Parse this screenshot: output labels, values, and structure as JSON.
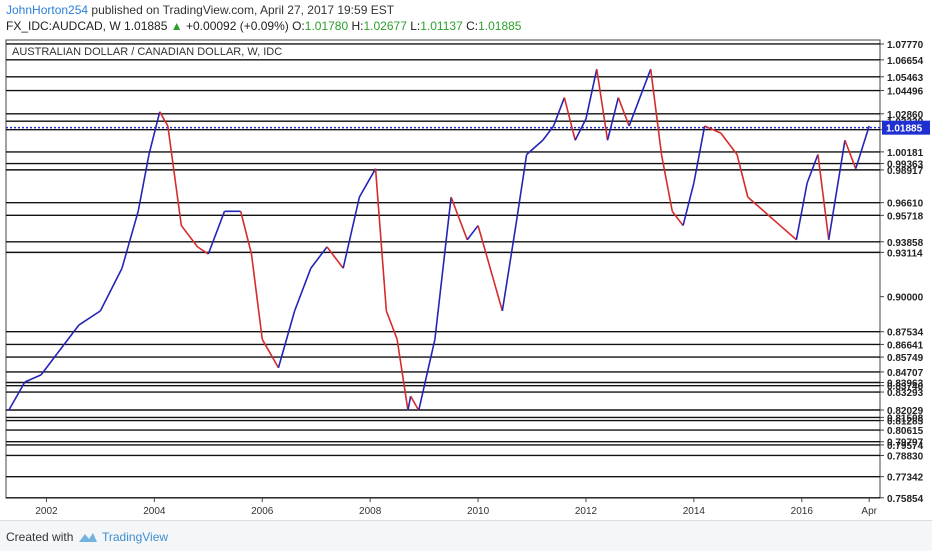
{
  "header": {
    "author": "JohnHorton254",
    "published_text": " published on TradingView.com, April 27, 2017 19:59 EST",
    "symbol": "FX_IDC:AUDCAD, W",
    "last_price": "1.01885",
    "change": "+0.00092 (+0.09%)",
    "ohlc": [
      {
        "label": "O:",
        "value": "1.01780"
      },
      {
        "label": "H:",
        "value": "1.02677"
      },
      {
        "label": "L:",
        "value": "1.01137"
      },
      {
        "label": "C:",
        "value": "1.01885"
      }
    ]
  },
  "footer": {
    "created_with": "Created with",
    "brand": "TradingView"
  },
  "colors": {
    "up": "#2424b8",
    "down": "#d62b2b",
    "level_line": "#111111",
    "current_line": "#2233cc",
    "current_label_bg": "#1f2fd0"
  },
  "chart_data": {
    "type": "line",
    "title": "AUSTRALIAN DOLLAR / CANADIAN DOLLAR, W, IDC",
    "ylim": [
      0.7584,
      1.0805
    ],
    "x_tick_labels": [
      "2002",
      "2004",
      "2006",
      "2008",
      "2010",
      "2012",
      "2014",
      "2016",
      "Apr"
    ],
    "x_tick_years": [
      2002,
      2004,
      2006,
      2008,
      2010,
      2012,
      2014,
      2016,
      2017.25
    ],
    "x_range": [
      2001.25,
      2017.45
    ],
    "y_tick_labels": [
      "1.07770",
      "1.06654",
      "1.05463",
      "1.04496",
      "1.02860",
      "1.02339",
      "1.01744",
      "1.00181",
      "0.99363",
      "0.98917",
      "0.96610",
      "0.95718",
      "0.93858",
      "0.93114",
      "0.90000",
      "0.87534",
      "0.86641",
      "0.85749",
      "0.84707",
      "0.83963",
      "0.83740",
      "0.83293",
      "0.82029",
      "0.81508",
      "0.81285",
      "0.80615",
      "0.79797",
      "0.79574",
      "0.78830",
      "0.77342",
      "0.75854"
    ],
    "horizontal_levels": [
      1.0777,
      1.06654,
      1.05463,
      1.04496,
      1.0286,
      1.02339,
      1.01744,
      1.00181,
      0.99363,
      0.98917,
      0.9661,
      0.95718,
      0.93858,
      0.93114,
      0.87534,
      0.86641,
      0.85749,
      0.84707,
      0.83963,
      0.8374,
      0.83293,
      0.82029,
      0.81508,
      0.81285,
      0.80615,
      0.79797,
      0.79574,
      0.7883,
      0.77342,
      0.75854
    ],
    "current_price": 1.01885,
    "current_price_label": "1.01885",
    "series": [
      {
        "x": [
          2001.3,
          2001.6,
          2001.9,
          2002.2,
          2002.6,
          2003.0,
          2003.4,
          2003.7,
          2003.9,
          2004.1,
          2004.25,
          2004.5,
          2004.8,
          2005.0,
          2005.3,
          2005.6,
          2005.8,
          2006.0,
          2006.3,
          2006.6,
          2006.9,
          2007.2,
          2007.5,
          2007.8,
          2008.1,
          2008.3,
          2008.5,
          2008.7,
          2008.75,
          2008.9,
          2009.2,
          2009.5,
          2009.8,
          2010.0,
          2010.3,
          2010.45,
          2010.7,
          2010.9,
          2011.2,
          2011.4,
          2011.6,
          2011.8,
          2012.0,
          2012.2,
          2012.4,
          2012.6,
          2012.8,
          2013.0,
          2013.2,
          2013.4,
          2013.6,
          2013.8,
          2014.0,
          2014.2,
          2014.5,
          2014.8,
          2015.0,
          2015.3,
          2015.6,
          2015.9,
          2016.1,
          2016.3,
          2016.5,
          2016.8,
          2017.0,
          2017.25
        ],
        "y": [
          0.82,
          0.84,
          0.845,
          0.86,
          0.88,
          0.89,
          0.92,
          0.96,
          1.0,
          1.03,
          1.02,
          0.95,
          0.935,
          0.93,
          0.96,
          0.96,
          0.93,
          0.87,
          0.85,
          0.89,
          0.92,
          0.935,
          0.92,
          0.97,
          0.99,
          0.89,
          0.87,
          0.82,
          0.83,
          0.82,
          0.87,
          0.97,
          0.94,
          0.95,
          0.91,
          0.89,
          0.95,
          1.0,
          1.01,
          1.02,
          1.04,
          1.01,
          1.025,
          1.06,
          1.01,
          1.04,
          1.02,
          1.04,
          1.06,
          1.0,
          0.96,
          0.95,
          0.98,
          1.02,
          1.015,
          1.0,
          0.97,
          0.96,
          0.95,
          0.94,
          0.98,
          1.0,
          0.94,
          1.01,
          0.99,
          1.02
        ]
      }
    ]
  }
}
